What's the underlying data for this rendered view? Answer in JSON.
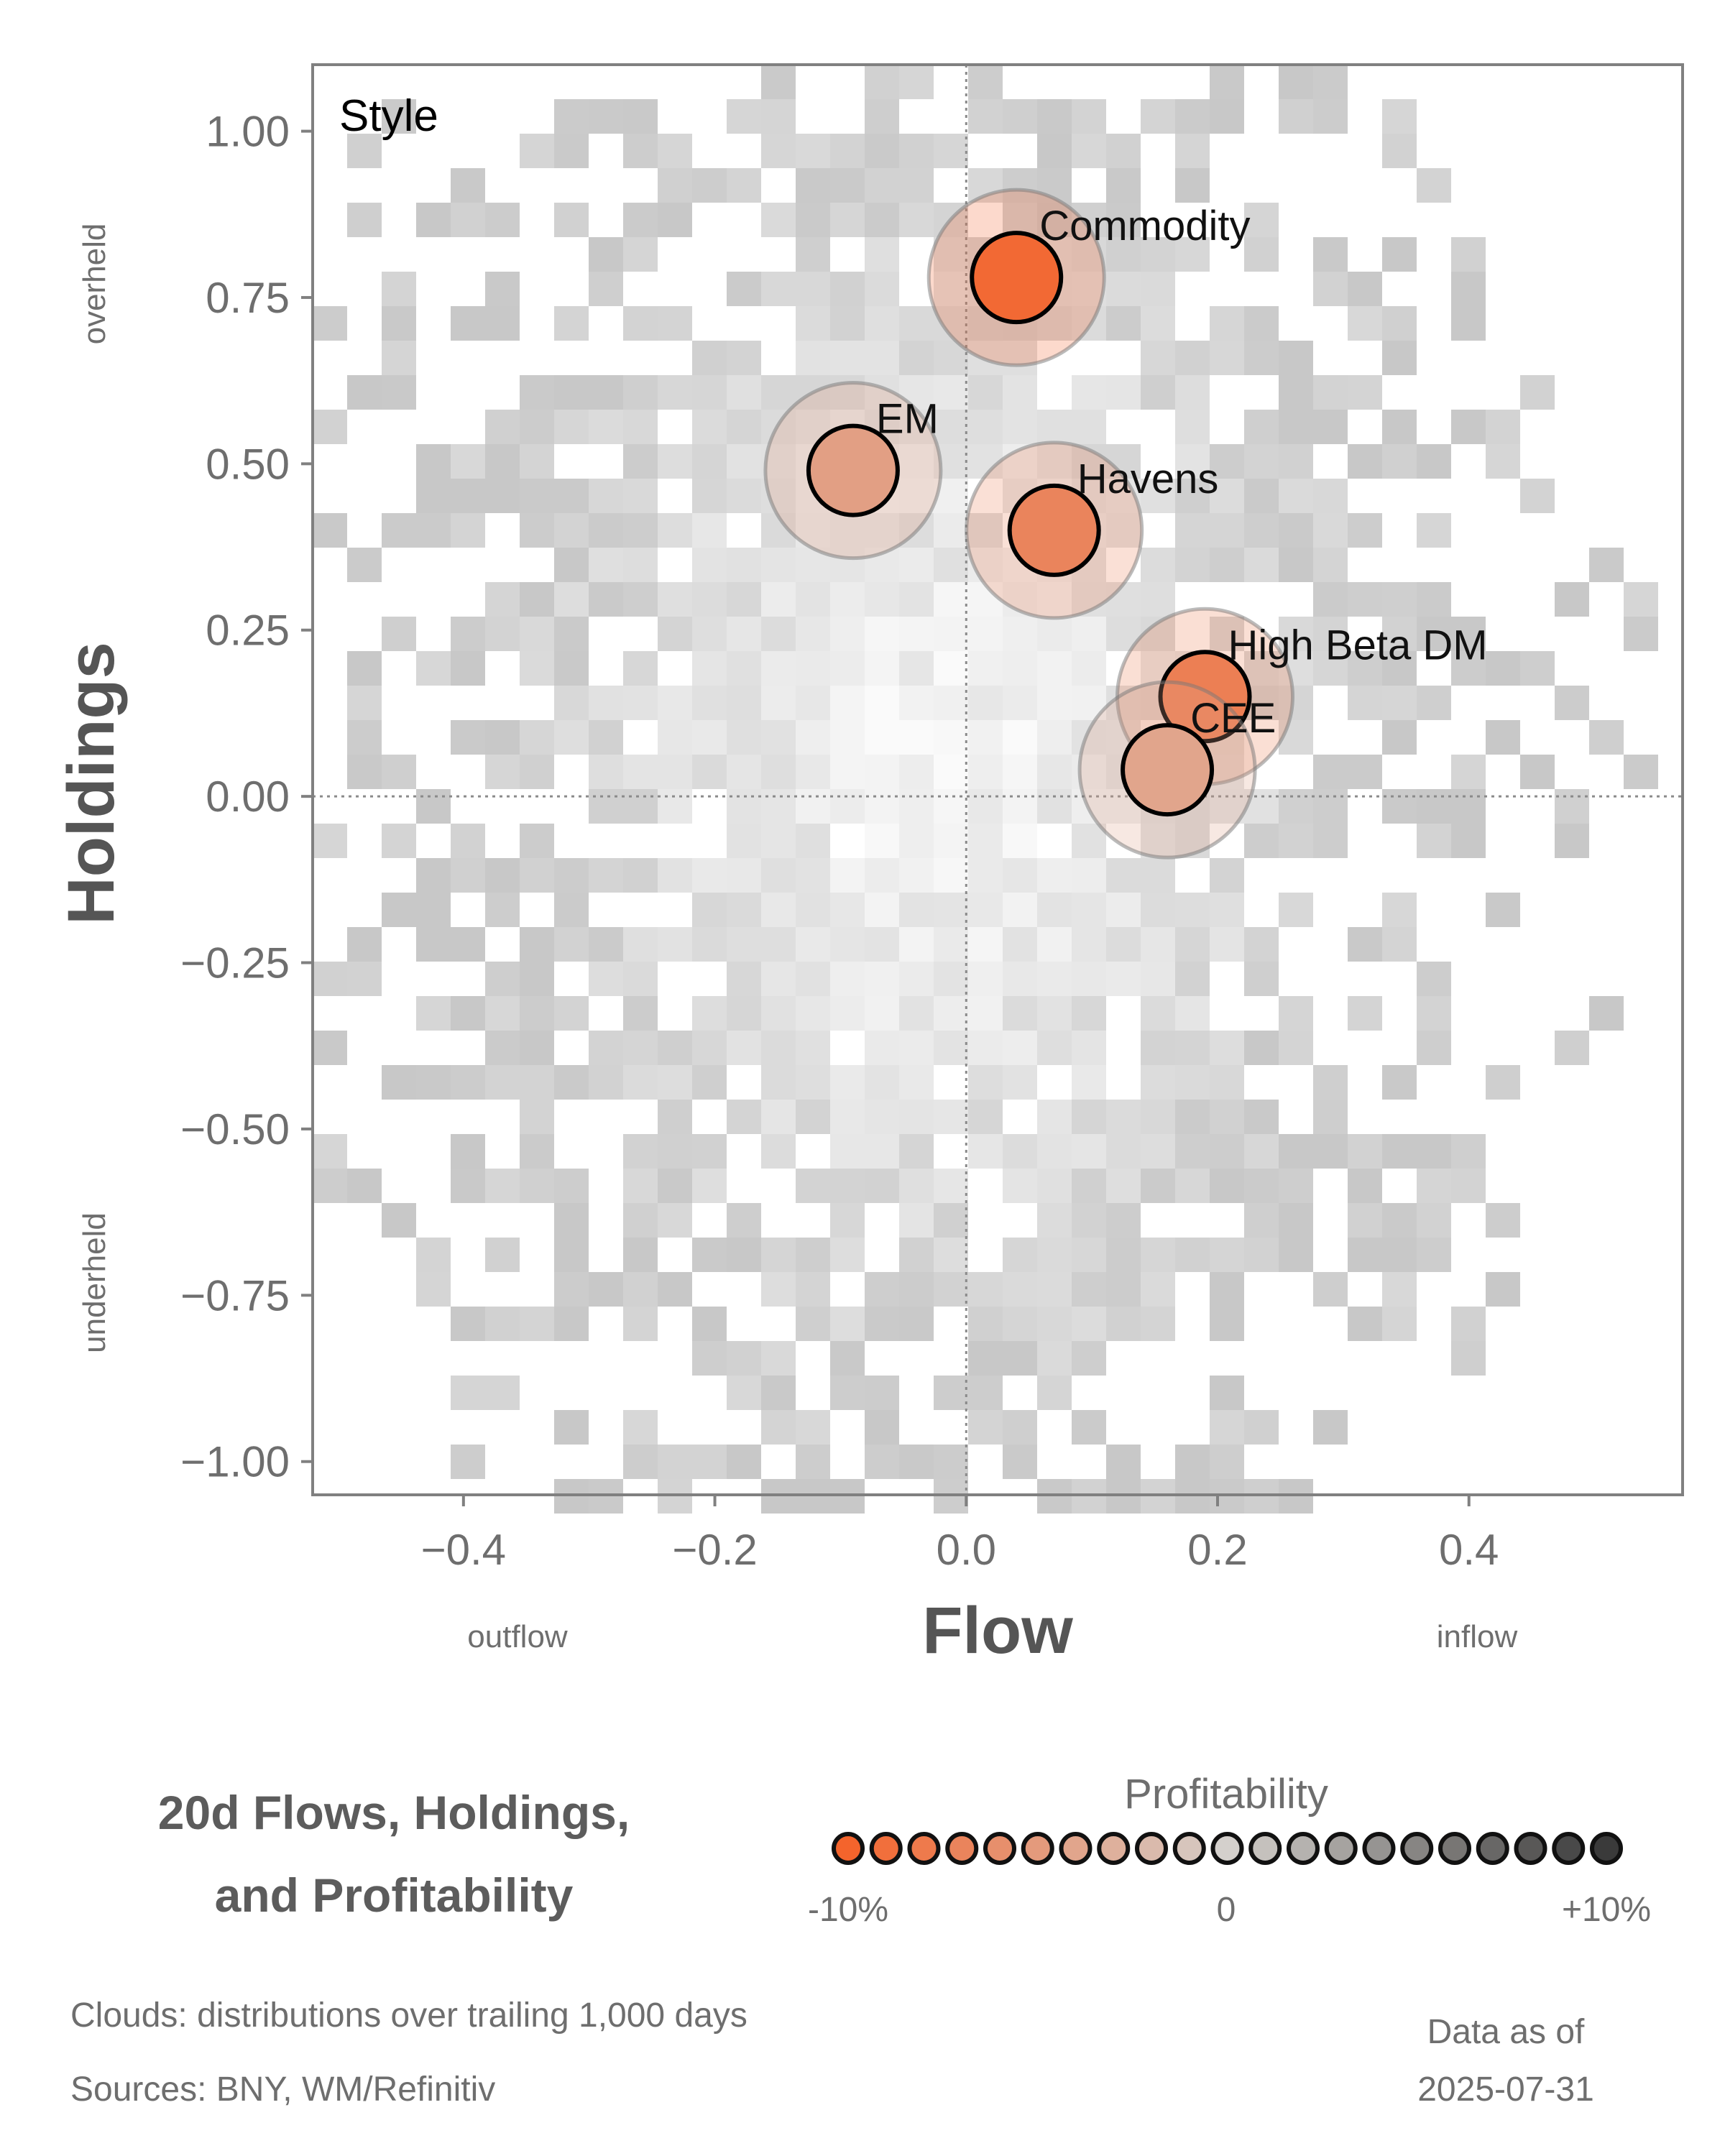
{
  "chart_data": {
    "type": "scatter",
    "panel_label": "Style",
    "xlabel": "Flow",
    "ylabel": "Holdings",
    "xlim": [
      -0.52,
      0.57
    ],
    "ylim": [
      -1.05,
      1.1
    ],
    "x_ticks": [
      -0.4,
      -0.2,
      0.0,
      0.2,
      0.4
    ],
    "x_tick_labels": [
      "−0.4",
      "−0.2",
      "0.0",
      "0.2",
      "0.4"
    ],
    "y_ticks": [
      1.0,
      0.75,
      0.5,
      0.25,
      0.0,
      -0.25,
      -0.5,
      -0.75,
      -1.0
    ],
    "y_tick_labels": [
      "1.00",
      "0.75",
      "0.50",
      "0.25",
      "0.00",
      "−0.25",
      "−0.50",
      "−0.75",
      "−1.00"
    ],
    "x_side_labels": {
      "left": "outflow",
      "right": "inflow"
    },
    "y_side_labels": {
      "top": "overheld",
      "bottom": "underheld"
    },
    "reference_lines": {
      "x": 0,
      "y": 0
    },
    "points": [
      {
        "label": "Commodity",
        "flow": 0.04,
        "holdings": 0.78,
        "profitability_pct": -9.5
      },
      {
        "label": "EM",
        "flow": -0.09,
        "holdings": 0.49,
        "profitability_pct": -4.5
      },
      {
        "label": "Havens",
        "flow": 0.07,
        "holdings": 0.4,
        "profitability_pct": -7.0
      },
      {
        "label": "High Beta DM",
        "flow": 0.19,
        "holdings": 0.15,
        "profitability_pct": -7.5
      },
      {
        "label": "CEE",
        "flow": 0.16,
        "holdings": 0.04,
        "profitability_pct": -4.0
      }
    ],
    "background": "2D distribution clouds (grey density cells)",
    "colorbar": {
      "title": "Profitability",
      "min_label": "-10%",
      "mid_label": "0",
      "max_label": "+10%",
      "range_pct": [
        -10,
        10
      ],
      "low_color": "#f4642c",
      "mid_color": "#d4d0cc",
      "high_color": "#3a3a3a"
    }
  },
  "footer": {
    "title_line1": "20d Flows, Holdings,",
    "title_line2": "and Profitability",
    "clouds_note": "Clouds:  distributions over trailing 1,000 days",
    "sources_note": "Sources:  BNY, WM/Refinitiv",
    "asof_line1": "Data as of",
    "asof_line2": "2025-07-31"
  }
}
